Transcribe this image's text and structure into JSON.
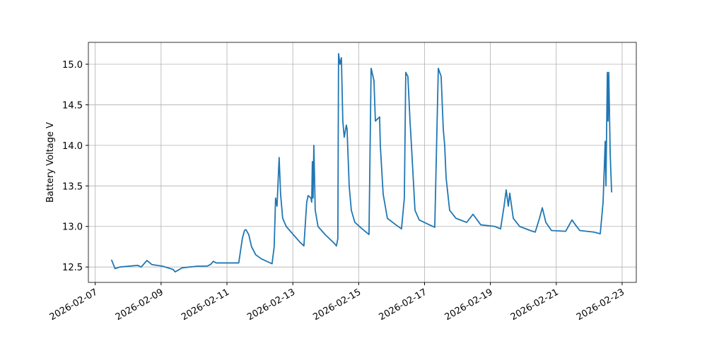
{
  "chart_data": {
    "type": "line",
    "y_label": "Battery Voltage V",
    "color": "#1f77b4",
    "grid": true,
    "x": [
      "2026-02-07T11:50",
      "2026-02-07T14:25",
      "2026-02-07T18:00",
      "2026-02-08T06:55",
      "2026-02-08T09:30",
      "2026-02-08T13:38",
      "2026-02-08T17:15",
      "2026-02-09T01:00",
      "2026-02-09T08:42",
      "2026-02-09T10:15",
      "2026-02-09T15:25",
      "2026-02-10T02:45",
      "2026-02-10T09:25",
      "2026-02-10T12:00",
      "2026-02-10T14:05",
      "2026-02-10T16:10",
      "2026-02-11T08:35",
      "2026-02-11T11:13",
      "2026-02-11T12:45",
      "2026-02-11T13:48",
      "2026-02-11T15:52",
      "2026-02-11T17:55",
      "2026-02-11T21:00",
      "2026-02-12T01:08",
      "2026-02-12T06:18",
      "2026-02-12T08:52",
      "2026-02-12T10:25",
      "2026-02-12T11:27",
      "2026-02-12T12:30",
      "2026-02-12T14:02",
      "2026-02-12T15:05",
      "2026-02-12T16:37",
      "2026-02-12T19:12",
      "2026-02-13T00:20",
      "2026-02-13T05:30",
      "2026-02-13T08:05",
      "2026-02-13T10:08",
      "2026-02-13T11:10",
      "2026-02-13T13:13",
      "2026-02-13T13:45",
      "2026-02-13T14:15",
      "2026-02-13T14:45",
      "2026-02-13T15:20",
      "2026-02-13T16:20",
      "2026-02-13T18:22",
      "2026-02-13T23:32",
      "2026-02-14T05:43",
      "2026-02-14T07:47",
      "2026-02-14T08:49",
      "2026-02-14T09:20",
      "2026-02-14T10:22",
      "2026-02-14T11:24",
      "2026-02-14T12:26",
      "2026-02-14T13:28",
      "2026-02-14T15:01",
      "2026-02-14T15:32",
      "2026-02-14T17:05",
      "2026-02-14T18:38",
      "2026-02-14T21:13",
      "2026-02-15T03:55",
      "2026-02-15T07:31",
      "2026-02-15T09:04",
      "2026-02-15T11:08",
      "2026-02-15T12:10",
      "2026-02-15T15:15",
      "2026-02-15T15:46",
      "2026-02-15T17:50",
      "2026-02-15T20:55",
      "2026-02-16T03:06",
      "2026-02-16T07:13",
      "2026-02-16T09:17",
      "2026-02-16T10:19",
      "2026-02-16T11:52",
      "2026-02-16T13:25",
      "2026-02-16T14:27",
      "2026-02-16T17:02",
      "2026-02-16T20:07",
      "2026-02-17T02:18",
      "2026-02-17T07:27",
      "2026-02-17T10:02",
      "2026-02-17T12:06",
      "2026-02-17T13:39",
      "2026-02-17T14:41",
      "2026-02-17T15:43",
      "2026-02-17T18:17",
      "2026-02-17T22:56",
      "2026-02-18T06:40",
      "2026-02-18T11:18",
      "2026-02-18T14:24",
      "2026-02-18T16:58",
      "2026-02-19T03:17",
      "2026-02-19T07:24",
      "2026-02-19T09:58",
      "2026-02-19T11:31",
      "2026-02-19T13:04",
      "2026-02-19T14:06",
      "2026-02-19T16:41",
      "2026-02-19T21:19",
      "2026-02-20T05:03",
      "2026-02-20T08:40",
      "2026-02-20T11:46",
      "2026-02-20T13:50",
      "2026-02-20T16:24",
      "2026-02-20T20:31",
      "2026-02-21T06:49",
      "2026-02-21T11:28",
      "2026-02-21T13:32",
      "2026-02-21T17:08",
      "2026-02-22T03:26",
      "2026-02-22T08:04",
      "2026-02-22T10:08",
      "2026-02-22T11:41",
      "2026-02-22T12:12",
      "2026-02-22T13:14",
      "2026-02-22T13:45",
      "2026-02-22T14:16",
      "2026-02-22T15:18",
      "2026-02-22T16:20"
    ],
    "values": [
      12.59,
      12.48,
      12.5,
      12.52,
      12.5,
      12.58,
      12.53,
      12.51,
      12.47,
      12.44,
      12.49,
      12.51,
      12.51,
      12.53,
      12.57,
      12.55,
      12.55,
      12.85,
      12.95,
      12.96,
      12.9,
      12.75,
      12.65,
      12.6,
      12.56,
      12.54,
      12.75,
      13.35,
      13.25,
      13.85,
      13.4,
      13.1,
      13.0,
      12.9,
      12.8,
      12.76,
      13.3,
      13.38,
      13.35,
      13.3,
      13.8,
      13.35,
      14.0,
      13.2,
      13.0,
      12.9,
      12.8,
      12.76,
      12.85,
      15.13,
      15.0,
      15.08,
      14.3,
      14.1,
      14.25,
      14.2,
      13.5,
      13.2,
      13.05,
      12.95,
      12.9,
      14.95,
      14.8,
      14.3,
      14.35,
      14.0,
      13.4,
      13.1,
      13.02,
      12.97,
      13.35,
      14.9,
      14.85,
      14.3,
      14.0,
      13.2,
      13.08,
      13.03,
      12.99,
      14.95,
      14.85,
      14.2,
      14.0,
      13.6,
      13.2,
      13.1,
      13.05,
      13.15,
      13.08,
      13.02,
      13.0,
      12.97,
      13.25,
      13.45,
      13.25,
      13.41,
      13.1,
      13.0,
      12.95,
      12.93,
      13.1,
      13.23,
      13.05,
      12.95,
      12.94,
      13.08,
      13.03,
      12.95,
      12.93,
      12.91,
      13.3,
      14.05,
      13.5,
      14.9,
      14.3,
      14.9,
      13.9,
      13.42
    ],
    "xlim": [
      "2026-02-06T19:00",
      "2026-02-23T10:20"
    ],
    "xticks": [
      "2026-02-07",
      "2026-02-09",
      "2026-02-11",
      "2026-02-13",
      "2026-02-15",
      "2026-02-17",
      "2026-02-19",
      "2026-02-21",
      "2026-02-23"
    ],
    "ylim": [
      12.31,
      15.27
    ],
    "yticks": [
      12.5,
      {
        "value": 13,
        "label": "13.0"
      },
      13.5,
      {
        "value": 14,
        "label": "14.0"
      },
      14.5,
      {
        "value": 15,
        "label": "15.0"
      }
    ]
  }
}
